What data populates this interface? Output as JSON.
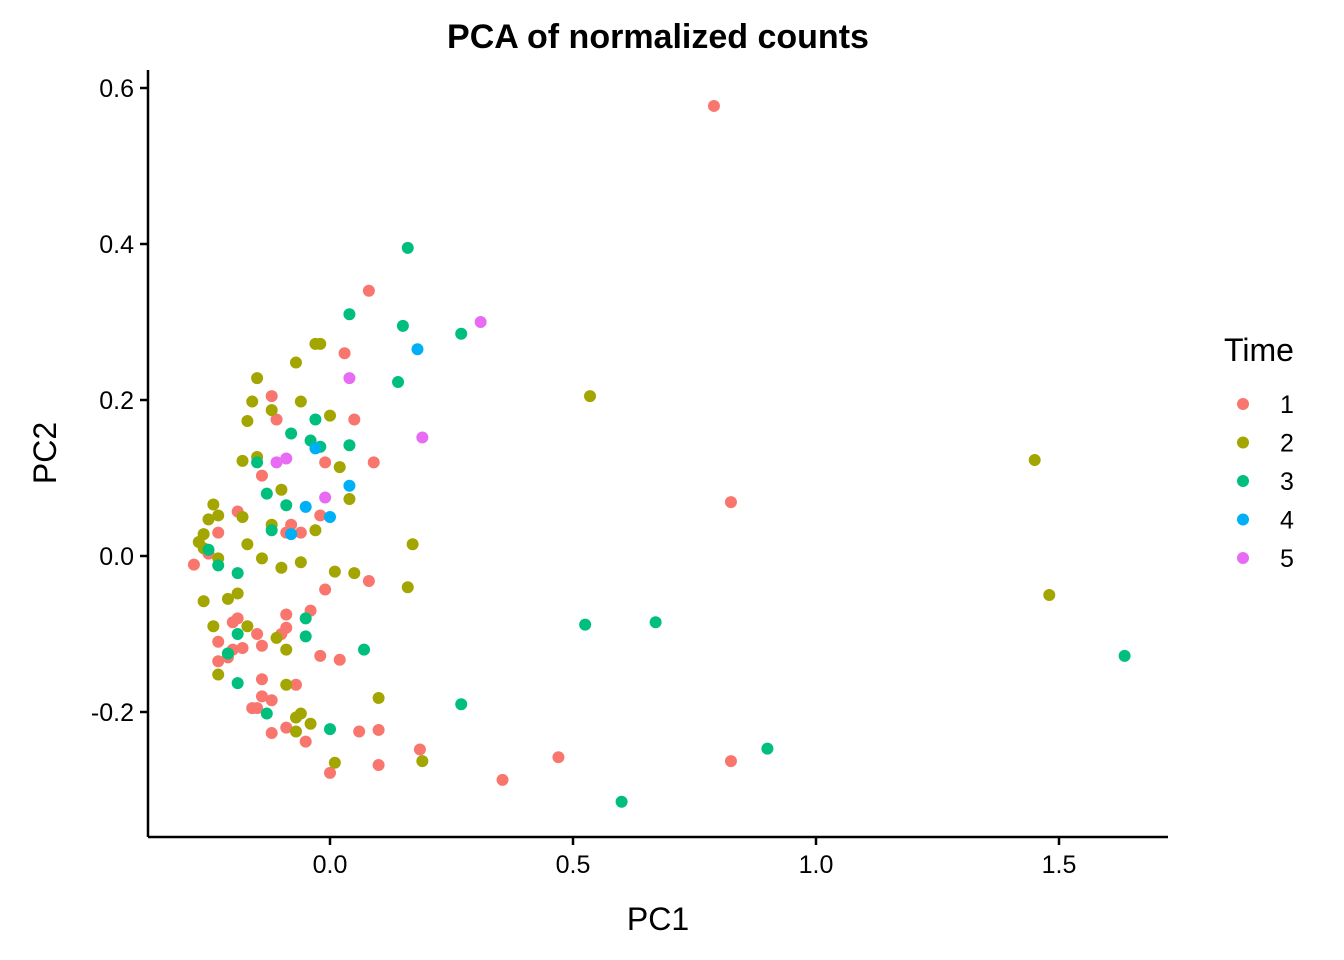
{
  "chart_data": {
    "type": "scatter",
    "title": "PCA of normalized counts",
    "xlabel": "PC1",
    "ylabel": "PC2",
    "xlim": [
      -0.375,
      1.725
    ],
    "ylim": [
      -0.36,
      0.62
    ],
    "xticks": [
      0.0,
      0.5,
      1.0,
      1.5
    ],
    "xtick_labels": [
      "0.0",
      "0.5",
      "1.0",
      "1.5"
    ],
    "yticks": [
      -0.2,
      0.0,
      0.2,
      0.4,
      0.6
    ],
    "ytick_labels": [
      "-0.2",
      "0.0",
      "0.2",
      "0.4",
      "0.6"
    ],
    "grid": false,
    "legend": {
      "title": "Time",
      "position": "right"
    },
    "series": [
      {
        "name": "1",
        "color": "#F8766D",
        "points": [
          [
            0.79,
            0.577
          ],
          [
            0.08,
            0.34
          ],
          [
            0.03,
            0.26
          ],
          [
            -0.12,
            0.205
          ],
          [
            -0.11,
            0.175
          ],
          [
            0.05,
            0.175
          ],
          [
            0.09,
            0.12
          ],
          [
            -0.01,
            0.12
          ],
          [
            -0.14,
            0.103
          ],
          [
            0.825,
            0.069
          ],
          [
            -0.02,
            0.052
          ],
          [
            -0.19,
            0.057
          ],
          [
            -0.08,
            0.04
          ],
          [
            -0.06,
            0.03
          ],
          [
            -0.09,
            0.03
          ],
          [
            -0.23,
            0.03
          ],
          [
            -0.25,
            0.003
          ],
          [
            -0.28,
            -0.011
          ],
          [
            0.08,
            -0.032
          ],
          [
            -0.01,
            -0.043
          ],
          [
            -0.04,
            -0.07
          ],
          [
            -0.09,
            -0.075
          ],
          [
            -0.19,
            -0.08
          ],
          [
            -0.2,
            -0.085
          ],
          [
            -0.09,
            -0.092
          ],
          [
            -0.1,
            -0.1
          ],
          [
            -0.15,
            -0.1
          ],
          [
            -0.23,
            -0.11
          ],
          [
            -0.14,
            -0.115
          ],
          [
            -0.18,
            -0.118
          ],
          [
            -0.2,
            -0.12
          ],
          [
            -0.02,
            -0.128
          ],
          [
            0.02,
            -0.133
          ],
          [
            -0.23,
            -0.135
          ],
          [
            -0.21,
            -0.13
          ],
          [
            -0.14,
            -0.158
          ],
          [
            -0.07,
            -0.165
          ],
          [
            -0.14,
            -0.18
          ],
          [
            -0.12,
            -0.185
          ],
          [
            -0.15,
            -0.195
          ],
          [
            -0.16,
            -0.195
          ],
          [
            -0.09,
            -0.22
          ],
          [
            -0.12,
            -0.227
          ],
          [
            0.06,
            -0.225
          ],
          [
            0.1,
            -0.223
          ],
          [
            -0.05,
            -0.238
          ],
          [
            0.185,
            -0.248
          ],
          [
            0.47,
            -0.258
          ],
          [
            0.825,
            -0.263
          ],
          [
            0.1,
            -0.268
          ],
          [
            0.0,
            -0.278
          ],
          [
            0.355,
            -0.287
          ]
        ]
      },
      {
        "name": "2",
        "color": "#A3A500",
        "points": [
          [
            0.535,
            0.205
          ],
          [
            -0.02,
            0.272
          ],
          [
            -0.03,
            0.272
          ],
          [
            -0.07,
            0.248
          ],
          [
            -0.15,
            0.228
          ],
          [
            -0.16,
            0.198
          ],
          [
            -0.06,
            0.198
          ],
          [
            -0.12,
            0.187
          ],
          [
            0.0,
            0.18
          ],
          [
            -0.17,
            0.173
          ],
          [
            -0.15,
            0.127
          ],
          [
            -0.18,
            0.122
          ],
          [
            0.02,
            0.114
          ],
          [
            1.45,
            0.123
          ],
          [
            -0.1,
            0.085
          ],
          [
            0.04,
            0.073
          ],
          [
            -0.24,
            0.066
          ],
          [
            -0.23,
            0.052
          ],
          [
            -0.18,
            0.05
          ],
          [
            -0.25,
            0.047
          ],
          [
            -0.12,
            0.04
          ],
          [
            -0.03,
            0.033
          ],
          [
            -0.26,
            0.028
          ],
          [
            -0.27,
            0.018
          ],
          [
            0.17,
            0.015
          ],
          [
            -0.17,
            0.015
          ],
          [
            -0.26,
            0.01
          ],
          [
            -0.23,
            -0.003
          ],
          [
            -0.14,
            -0.003
          ],
          [
            -0.06,
            -0.008
          ],
          [
            -0.1,
            -0.015
          ],
          [
            0.01,
            -0.02
          ],
          [
            0.05,
            -0.022
          ],
          [
            0.16,
            -0.04
          ],
          [
            -0.19,
            -0.048
          ],
          [
            -0.21,
            -0.055
          ],
          [
            -0.26,
            -0.058
          ],
          [
            1.48,
            -0.05
          ],
          [
            -0.24,
            -0.09
          ],
          [
            -0.17,
            -0.09
          ],
          [
            -0.11,
            -0.105
          ],
          [
            -0.09,
            -0.12
          ],
          [
            -0.21,
            -0.125
          ],
          [
            -0.23,
            -0.152
          ],
          [
            -0.09,
            -0.165
          ],
          [
            0.1,
            -0.182
          ],
          [
            -0.06,
            -0.202
          ],
          [
            -0.07,
            -0.207
          ],
          [
            -0.04,
            -0.215
          ],
          [
            -0.07,
            -0.225
          ],
          [
            0.19,
            -0.263
          ],
          [
            0.01,
            -0.265
          ]
        ]
      },
      {
        "name": "3",
        "color": "#00BF7D",
        "points": [
          [
            0.16,
            0.395
          ],
          [
            0.04,
            0.31
          ],
          [
            0.15,
            0.295
          ],
          [
            0.27,
            0.285
          ],
          [
            0.14,
            0.223
          ],
          [
            -0.03,
            0.175
          ],
          [
            -0.08,
            0.157
          ],
          [
            -0.04,
            0.148
          ],
          [
            -0.02,
            0.14
          ],
          [
            0.04,
            0.142
          ],
          [
            -0.15,
            0.12
          ],
          [
            -0.13,
            0.08
          ],
          [
            -0.09,
            0.065
          ],
          [
            -0.12,
            0.033
          ],
          [
            -0.25,
            0.008
          ],
          [
            -0.23,
            -0.012
          ],
          [
            -0.19,
            -0.022
          ],
          [
            -0.05,
            -0.08
          ],
          [
            0.525,
            -0.088
          ],
          [
            0.67,
            -0.085
          ],
          [
            -0.19,
            -0.1
          ],
          [
            -0.05,
            -0.103
          ],
          [
            0.07,
            -0.12
          ],
          [
            -0.21,
            -0.125
          ],
          [
            1.635,
            -0.128
          ],
          [
            -0.19,
            -0.163
          ],
          [
            0.27,
            -0.19
          ],
          [
            -0.13,
            -0.202
          ],
          [
            0.0,
            -0.222
          ],
          [
            0.9,
            -0.247
          ],
          [
            0.6,
            -0.315
          ]
        ]
      },
      {
        "name": "4",
        "color": "#00B0F6",
        "points": [
          [
            0.18,
            0.265
          ],
          [
            -0.03,
            0.138
          ],
          [
            0.04,
            0.09
          ],
          [
            -0.05,
            0.063
          ],
          [
            0.0,
            0.05
          ],
          [
            -0.08,
            0.028
          ]
        ]
      },
      {
        "name": "5",
        "color": "#E76BF3",
        "points": [
          [
            0.31,
            0.3
          ],
          [
            0.04,
            0.228
          ],
          [
            0.19,
            0.152
          ],
          [
            -0.09,
            0.125
          ],
          [
            -0.11,
            0.12
          ],
          [
            -0.01,
            0.075
          ]
        ]
      }
    ]
  }
}
